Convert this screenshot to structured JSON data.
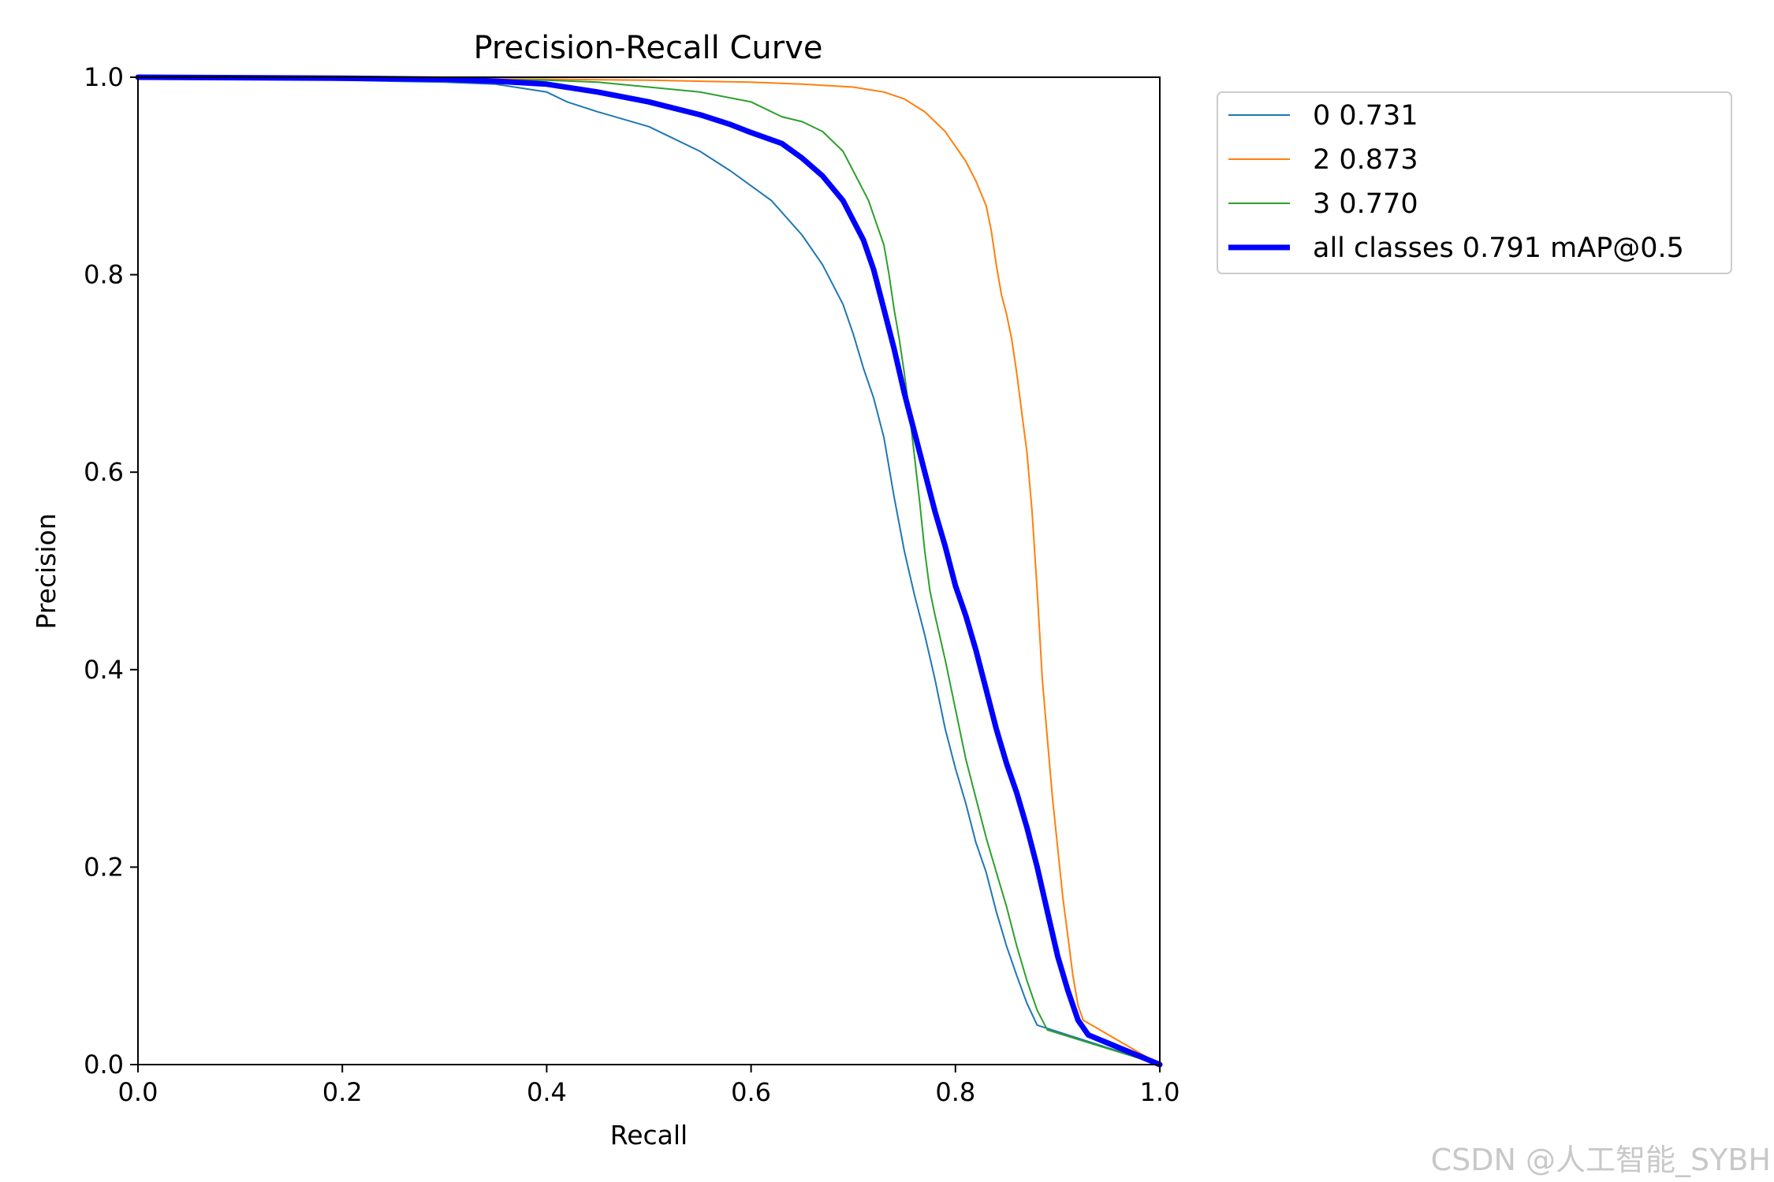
{
  "chart_data": {
    "type": "line",
    "title": "Precision-Recall Curve",
    "xlabel": "Recall",
    "ylabel": "Precision",
    "xlim": [
      0,
      1
    ],
    "ylim": [
      0,
      1
    ],
    "xticks": [
      "0.0",
      "0.2",
      "0.4",
      "0.6",
      "0.8",
      "1.0"
    ],
    "yticks": [
      "0.0",
      "0.2",
      "0.4",
      "0.6",
      "0.8",
      "1.0"
    ],
    "grid": false,
    "legend_position": "outside-top-right",
    "series": [
      {
        "name": "0 0.731",
        "color": "#1f77b4",
        "width": 2,
        "x": [
          0.0,
          0.1,
          0.2,
          0.3,
          0.35,
          0.4,
          0.42,
          0.45,
          0.5,
          0.52,
          0.55,
          0.58,
          0.6,
          0.62,
          0.65,
          0.67,
          0.69,
          0.7,
          0.71,
          0.72,
          0.73,
          0.74,
          0.75,
          0.76,
          0.77,
          0.78,
          0.79,
          0.8,
          0.81,
          0.82,
          0.83,
          0.84,
          0.85,
          0.86,
          0.87,
          0.88,
          1.0
        ],
        "y": [
          1.0,
          0.999,
          0.997,
          0.995,
          0.993,
          0.985,
          0.975,
          0.965,
          0.95,
          0.94,
          0.925,
          0.905,
          0.89,
          0.875,
          0.84,
          0.81,
          0.77,
          0.74,
          0.705,
          0.675,
          0.635,
          0.575,
          0.52,
          0.475,
          0.435,
          0.39,
          0.34,
          0.3,
          0.265,
          0.225,
          0.195,
          0.155,
          0.12,
          0.09,
          0.062,
          0.04,
          0.0
        ]
      },
      {
        "name": "2 0.873",
        "color": "#ff7f0e",
        "width": 2,
        "x": [
          0.0,
          0.2,
          0.4,
          0.5,
          0.6,
          0.65,
          0.7,
          0.73,
          0.75,
          0.77,
          0.79,
          0.8,
          0.81,
          0.82,
          0.83,
          0.835,
          0.84,
          0.845,
          0.85,
          0.855,
          0.86,
          0.865,
          0.87,
          0.875,
          0.88,
          0.885,
          0.89,
          0.895,
          0.9,
          0.905,
          0.91,
          0.915,
          0.92,
          0.925,
          1.0
        ],
        "y": [
          1.0,
          0.999,
          0.998,
          0.997,
          0.995,
          0.993,
          0.99,
          0.985,
          0.978,
          0.965,
          0.945,
          0.93,
          0.915,
          0.895,
          0.87,
          0.845,
          0.81,
          0.78,
          0.76,
          0.735,
          0.7,
          0.66,
          0.62,
          0.56,
          0.48,
          0.39,
          0.33,
          0.27,
          0.22,
          0.17,
          0.13,
          0.09,
          0.06,
          0.045,
          0.0
        ]
      },
      {
        "name": "3 0.770",
        "color": "#2ca02c",
        "width": 2,
        "x": [
          0.0,
          0.2,
          0.4,
          0.45,
          0.5,
          0.55,
          0.6,
          0.63,
          0.65,
          0.67,
          0.69,
          0.7,
          0.71,
          0.715,
          0.72,
          0.73,
          0.735,
          0.74,
          0.745,
          0.75,
          0.755,
          0.76,
          0.765,
          0.77,
          0.775,
          0.78,
          0.79,
          0.8,
          0.81,
          0.82,
          0.83,
          0.84,
          0.85,
          0.86,
          0.87,
          0.88,
          0.89,
          1.0
        ],
        "y": [
          1.0,
          0.999,
          0.997,
          0.995,
          0.99,
          0.985,
          0.975,
          0.96,
          0.955,
          0.945,
          0.925,
          0.905,
          0.885,
          0.875,
          0.86,
          0.83,
          0.8,
          0.765,
          0.735,
          0.7,
          0.66,
          0.615,
          0.57,
          0.52,
          0.48,
          0.455,
          0.41,
          0.36,
          0.31,
          0.27,
          0.23,
          0.195,
          0.16,
          0.12,
          0.085,
          0.055,
          0.035,
          0.0
        ]
      },
      {
        "name": "all classes 0.791 mAP@0.5",
        "color": "#0000ff",
        "width": 7,
        "x": [
          0.0,
          0.2,
          0.3,
          0.35,
          0.4,
          0.45,
          0.5,
          0.55,
          0.58,
          0.6,
          0.63,
          0.65,
          0.67,
          0.69,
          0.7,
          0.71,
          0.72,
          0.73,
          0.74,
          0.75,
          0.76,
          0.77,
          0.78,
          0.79,
          0.8,
          0.81,
          0.82,
          0.83,
          0.84,
          0.85,
          0.86,
          0.87,
          0.88,
          0.89,
          0.9,
          0.91,
          0.92,
          0.93,
          1.0
        ],
        "y": [
          1.0,
          0.999,
          0.998,
          0.996,
          0.993,
          0.985,
          0.975,
          0.962,
          0.952,
          0.944,
          0.933,
          0.918,
          0.9,
          0.875,
          0.855,
          0.835,
          0.805,
          0.765,
          0.725,
          0.68,
          0.64,
          0.6,
          0.56,
          0.525,
          0.485,
          0.455,
          0.42,
          0.38,
          0.34,
          0.305,
          0.275,
          0.24,
          0.2,
          0.155,
          0.11,
          0.075,
          0.045,
          0.03,
          0.0
        ]
      }
    ]
  },
  "watermark": "CSDN @人工智能_SYBH"
}
